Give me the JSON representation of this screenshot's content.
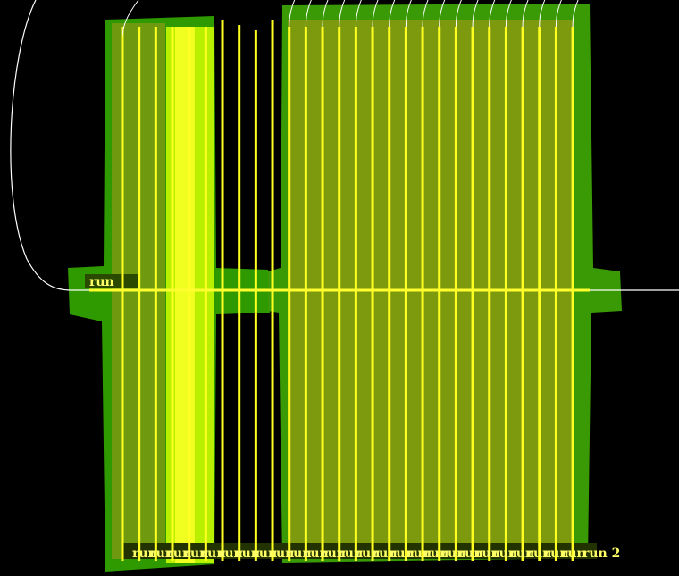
{
  "labels": {
    "left": "run",
    "bottom_right": "run 2",
    "bottom": [
      "run",
      "run",
      "run",
      "run",
      "run",
      "run",
      "run",
      "run",
      "run",
      "run",
      "run",
      "run",
      "run",
      "run",
      "run",
      "run",
      "run",
      "run",
      "run",
      "run",
      "run",
      "run",
      "run",
      "run",
      "run",
      "run"
    ]
  }
}
